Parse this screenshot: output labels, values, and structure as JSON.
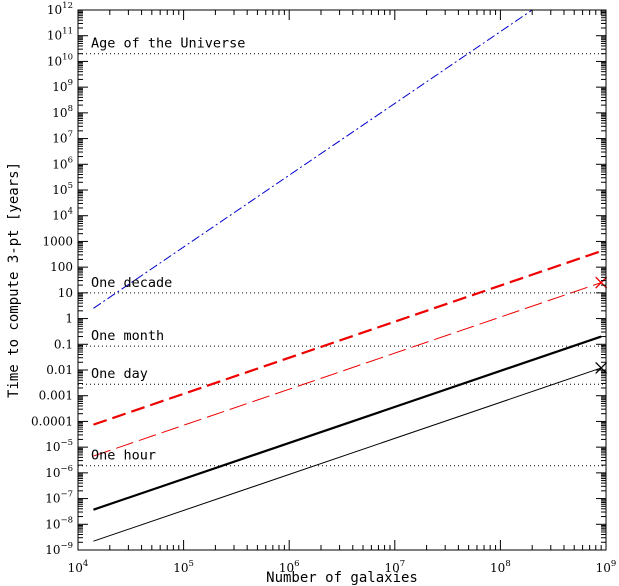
{
  "chart_data": {
    "type": "line",
    "title": "",
    "xlabel": "Number of galaxies",
    "ylabel": "Time to compute 3-pt [years]",
    "xscale": "log",
    "yscale": "log",
    "xlim": [
      10000,
      1000000000
    ],
    "ylim": [
      1e-09,
      1000000000000.0
    ],
    "grid": false,
    "legend": "none",
    "x_ticks": [
      {
        "value": 10000,
        "base": "10",
        "exp": "4"
      },
      {
        "value": 100000,
        "base": "10",
        "exp": "5"
      },
      {
        "value": 1000000,
        "base": "10",
        "exp": "6"
      },
      {
        "value": 10000000,
        "base": "10",
        "exp": "7"
      },
      {
        "value": 100000000,
        "base": "10",
        "exp": "8"
      },
      {
        "value": 1000000000,
        "base": "10",
        "exp": "9"
      }
    ],
    "y_ticks": [
      {
        "value": 1000000000000.0,
        "base": "10",
        "exp": "12"
      },
      {
        "value": 100000000000.0,
        "base": "10",
        "exp": "11"
      },
      {
        "value": 10000000000.0,
        "base": "10",
        "exp": "10"
      },
      {
        "value": 1000000000.0,
        "base": "10",
        "exp": "9"
      },
      {
        "value": 100000000.0,
        "base": "10",
        "exp": "8"
      },
      {
        "value": 10000000.0,
        "base": "10",
        "exp": "7"
      },
      {
        "value": 1000000.0,
        "base": "10",
        "exp": "6"
      },
      {
        "value": 100000.0,
        "base": "10",
        "exp": "5"
      },
      {
        "value": 10000.0,
        "base": "10",
        "exp": "4"
      },
      {
        "value": 1000,
        "text": "1000"
      },
      {
        "value": 100,
        "text": "100"
      },
      {
        "value": 10,
        "text": "10"
      },
      {
        "value": 1,
        "text": "1"
      },
      {
        "value": 0.1,
        "text": "0.1"
      },
      {
        "value": 0.01,
        "text": "0.01"
      },
      {
        "value": 0.001,
        "text": "0.001"
      },
      {
        "value": 0.0001,
        "text": "0.0001"
      },
      {
        "value": 1e-05,
        "base": "10",
        "exp": "−5"
      },
      {
        "value": 1e-06,
        "base": "10",
        "exp": "−6"
      },
      {
        "value": 1e-07,
        "base": "10",
        "exp": "−7"
      },
      {
        "value": 1e-08,
        "base": "10",
        "exp": "−8"
      },
      {
        "value": 1e-09,
        "base": "10",
        "exp": "−9"
      }
    ],
    "series": [
      {
        "color": "#0000cc",
        "style": "dashdot",
        "width": "thin",
        "x": [
          14000,
          200000000
        ],
        "y": [
          2.5,
          1000000000000.0
        ]
      },
      {
        "color": "#ee0000",
        "style": "longdash",
        "width": "thick",
        "x": [
          14000,
          900000000
        ],
        "y": [
          7.5e-05,
          420
        ]
      },
      {
        "color": "#ee0000",
        "style": "longdash",
        "width": "thin",
        "x": [
          14000,
          900000000
        ],
        "y": [
          4.5e-06,
          25
        ]
      },
      {
        "color": "#000000",
        "style": "solid",
        "width": "thick",
        "x": [
          14000,
          900000000
        ],
        "y": [
          3.7e-08,
          0.2
        ]
      },
      {
        "color": "#000000",
        "style": "solid",
        "width": "thin",
        "x": [
          14000,
          900000000
        ],
        "y": [
          2.2e-09,
          0.012
        ]
      }
    ],
    "markers": [
      {
        "symbol": "x",
        "color": "#ee0000",
        "x": 900000000,
        "y": 25
      },
      {
        "symbol": "x",
        "color": "#000000",
        "x": 900000000,
        "y": 0.012
      }
    ],
    "reference_lines": [
      {
        "y": 20000000000.0,
        "label": "Age of the Universe"
      },
      {
        "y": 10,
        "label": "One decade"
      },
      {
        "y": 0.085,
        "label": "One month"
      },
      {
        "y": 0.0028,
        "label": "One day"
      },
      {
        "y": 1.9e-06,
        "label": "One hour"
      }
    ]
  }
}
